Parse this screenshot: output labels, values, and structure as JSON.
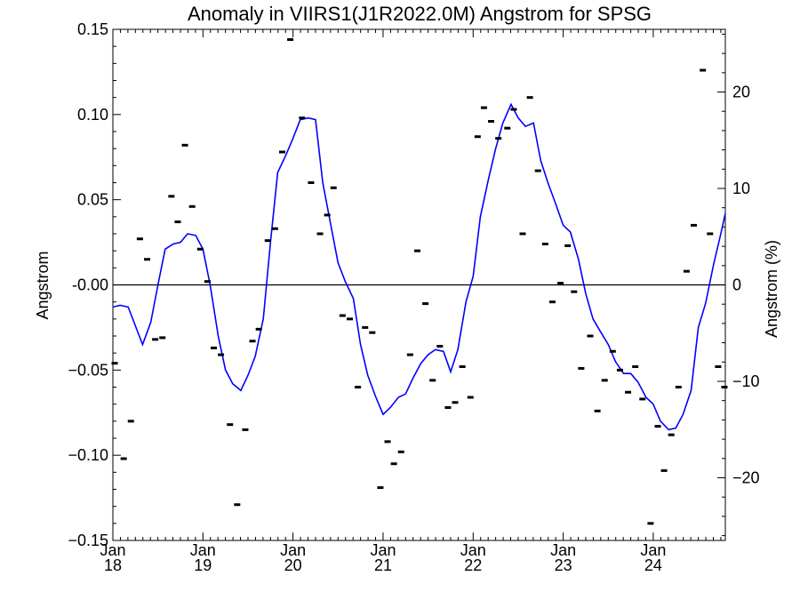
{
  "chart_data": {
    "type": "line",
    "title": "Anomaly in VIIRS1(J1R2022.0M) Angstrom for SPSG",
    "ylabel": "Angstrom",
    "ylabel_right": "Angstrom (%)",
    "xlim": [
      2018.0,
      2024.8
    ],
    "ylim": [
      -0.15,
      0.15
    ],
    "ylim_right": [
      -26.5,
      26.5
    ],
    "y_ticks": [
      -0.15,
      -0.1,
      -0.05,
      0.0,
      0.05,
      0.1,
      0.15
    ],
    "y_tick_labels": [
      "−0.15",
      "−0.10",
      "−0.05",
      "-0.00",
      "0.05",
      "0.10",
      "0.15"
    ],
    "y_right_ticks": [
      -20,
      -10,
      0,
      10,
      20
    ],
    "y_right_tick_labels": [
      "−20",
      "−10",
      "0",
      "10",
      "20"
    ],
    "x_ticks": [
      {
        "x": 2018.0,
        "month": "Jan",
        "year": "18"
      },
      {
        "x": 2019.0,
        "month": "Jan",
        "year": "19"
      },
      {
        "x": 2020.0,
        "month": "Jan",
        "year": "20"
      },
      {
        "x": 2021.0,
        "month": "Jan",
        "year": "21"
      },
      {
        "x": 2022.0,
        "month": "Jan",
        "year": "22"
      },
      {
        "x": 2023.0,
        "month": "Jan",
        "year": "23"
      },
      {
        "x": 2024.0,
        "month": "Jan",
        "year": "24"
      }
    ],
    "reference_line_y": 0.0,
    "colors": {
      "line": "#0000ff",
      "points": "#000000",
      "axes": "#000000"
    },
    "series": [
      {
        "kind": "line",
        "x": [
          2018.0,
          2018.08,
          2018.17,
          2018.25,
          2018.33,
          2018.42,
          2018.5,
          2018.58,
          2018.67,
          2018.75,
          2018.83,
          2018.92,
          2019.0,
          2019.08,
          2019.17,
          2019.25,
          2019.33,
          2019.42,
          2019.5,
          2019.58,
          2019.67,
          2019.75,
          2019.83,
          2019.92,
          2020.0,
          2020.08,
          2020.17,
          2020.25,
          2020.33,
          2020.42,
          2020.5,
          2020.58,
          2020.67,
          2020.75,
          2020.83,
          2020.92,
          2021.0,
          2021.08,
          2021.17,
          2021.25,
          2021.33,
          2021.42,
          2021.5,
          2021.58,
          2021.67,
          2021.75,
          2021.83,
          2021.92,
          2022.0,
          2022.08,
          2022.17,
          2022.25,
          2022.33,
          2022.42,
          2022.5,
          2022.58,
          2022.67,
          2022.75,
          2022.83,
          2022.92,
          2023.0,
          2023.08,
          2023.17,
          2023.25,
          2023.33,
          2023.42,
          2023.5,
          2023.58,
          2023.67,
          2023.75,
          2023.83,
          2023.92,
          2024.0,
          2024.08,
          2024.17,
          2024.25,
          2024.33,
          2024.42,
          2024.5,
          2024.58,
          2024.67,
          2024.75,
          2024.8
        ],
        "y": [
          -0.013,
          -0.012,
          -0.013,
          -0.024,
          -0.035,
          -0.022,
          0.0,
          0.021,
          0.024,
          0.025,
          0.03,
          0.029,
          0.021,
          0.0,
          -0.03,
          -0.05,
          -0.058,
          -0.062,
          -0.053,
          -0.042,
          -0.02,
          0.025,
          0.066,
          0.076,
          0.086,
          0.097,
          0.098,
          0.097,
          0.06,
          0.035,
          0.013,
          0.002,
          -0.008,
          -0.035,
          -0.053,
          -0.066,
          -0.076,
          -0.072,
          -0.066,
          -0.064,
          -0.055,
          -0.046,
          -0.041,
          -0.038,
          -0.039,
          -0.051,
          -0.038,
          -0.01,
          0.005,
          0.04,
          0.062,
          0.08,
          0.095,
          0.106,
          0.098,
          0.093,
          0.095,
          0.073,
          0.06,
          0.047,
          0.035,
          0.031,
          0.015,
          -0.005,
          -0.02,
          -0.028,
          -0.035,
          -0.045,
          -0.052,
          -0.052,
          -0.057,
          -0.066,
          -0.07,
          -0.08,
          -0.085,
          -0.084,
          -0.076,
          -0.062,
          -0.025,
          -0.011,
          0.012,
          0.03,
          0.042
        ]
      },
      {
        "kind": "points",
        "x": [
          2018.02,
          2018.12,
          2018.2,
          2018.3,
          2018.38,
          2018.47,
          2018.55,
          2018.65,
          2018.72,
          2018.8,
          2018.88,
          2018.97,
          2019.05,
          2019.12,
          2019.2,
          2019.3,
          2019.38,
          2019.47,
          2019.55,
          2019.62,
          2019.72,
          2019.8,
          2019.88,
          2019.97,
          2020.1,
          2020.2,
          2020.3,
          2020.38,
          2020.45,
          2020.55,
          2020.63,
          2020.72,
          2020.8,
          2020.88,
          2020.97,
          2021.05,
          2021.12,
          2021.2,
          2021.3,
          2021.38,
          2021.47,
          2021.55,
          2021.63,
          2021.72,
          2021.8,
          2021.88,
          2021.97,
          2022.05,
          2022.12,
          2022.2,
          2022.28,
          2022.38,
          2022.45,
          2022.55,
          2022.63,
          2022.72,
          2022.8,
          2022.88,
          2022.97,
          2023.05,
          2023.12,
          2023.2,
          2023.3,
          2023.38,
          2023.46,
          2023.55,
          2023.63,
          2023.72,
          2023.8,
          2023.88,
          2023.97,
          2024.05,
          2024.12,
          2024.2,
          2024.28,
          2024.37,
          2024.45,
          2024.55,
          2024.63,
          2024.72,
          2024.79
        ],
        "y": [
          -0.046,
          -0.102,
          -0.08,
          0.027,
          0.015,
          -0.032,
          -0.031,
          0.052,
          0.037,
          0.082,
          0.046,
          0.021,
          0.002,
          -0.037,
          -0.041,
          -0.082,
          -0.129,
          -0.085,
          -0.033,
          -0.026,
          0.026,
          0.033,
          0.078,
          0.144,
          0.098,
          0.06,
          0.03,
          0.041,
          0.057,
          -0.018,
          -0.02,
          -0.06,
          -0.025,
          -0.028,
          -0.119,
          -0.092,
          -0.105,
          -0.098,
          -0.041,
          0.02,
          -0.011,
          -0.056,
          -0.036,
          -0.072,
          -0.069,
          -0.048,
          -0.066,
          0.087,
          0.104,
          0.096,
          0.086,
          0.092,
          0.103,
          0.03,
          0.11,
          0.067,
          0.024,
          -0.01,
          0.001,
          0.023,
          -0.004,
          -0.049,
          -0.03,
          -0.074,
          -0.056,
          -0.039,
          -0.05,
          -0.063,
          -0.048,
          -0.067,
          -0.14,
          -0.083,
          -0.109,
          -0.088,
          -0.06,
          0.008,
          0.035,
          0.126,
          0.03,
          -0.048,
          -0.06
        ]
      }
    ]
  }
}
